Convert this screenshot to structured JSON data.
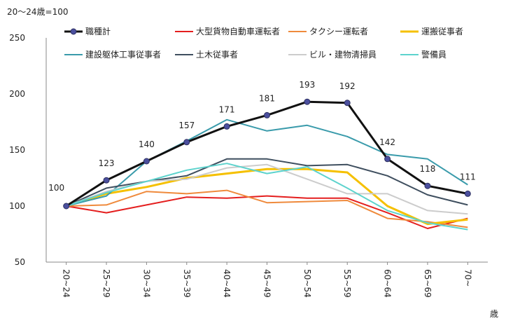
{
  "chart_data": {
    "type": "line",
    "unit_note": "20～24歳=100",
    "xlabel": "歳",
    "ylim": [
      50,
      250
    ],
    "yticks": [
      50,
      100,
      150,
      200,
      250
    ],
    "grid": false,
    "legend_position": "top",
    "categories": [
      "20~24",
      "25~29",
      "30~34",
      "35~39",
      "40~44",
      "45~49",
      "50~54",
      "55~59",
      "60~64",
      "65~69",
      "70~"
    ],
    "series": [
      {
        "name": "職種計",
        "color": "#111111",
        "marker": true,
        "labels": true,
        "values": [
          100,
          123,
          140,
          157,
          171,
          181,
          193,
          192,
          142,
          118,
          111
        ]
      },
      {
        "name": "大型貨物自動車運転者",
        "color": "#e41e1e",
        "values": [
          100,
          94,
          101,
          108,
          107,
          109,
          107,
          107,
          94,
          80,
          89
        ]
      },
      {
        "name": "タクシー運転者",
        "color": "#ef8a3c",
        "values": [
          100,
          101,
          113,
          111,
          114,
          103,
          104,
          105,
          89,
          86,
          81
        ]
      },
      {
        "name": "運搬従事者",
        "color": "#f5c000",
        "values": [
          100,
          111,
          117,
          125,
          129,
          133,
          133,
          130,
          100,
          84,
          88
        ]
      },
      {
        "name": "建設躯体工事従事者",
        "color": "#3a9bab",
        "values": [
          100,
          109,
          140,
          158,
          177,
          167,
          172,
          162,
          146,
          142,
          119
        ]
      },
      {
        "name": "土木従事者",
        "color": "#3f4f5f",
        "values": [
          100,
          116,
          122,
          127,
          142,
          142,
          136,
          137,
          127,
          110,
          101
        ]
      },
      {
        "name": "ビル・建物清掃員",
        "color": "#cccccc",
        "values": [
          100,
          113,
          122,
          124,
          134,
          137,
          124,
          111,
          111,
          96,
          93
        ]
      },
      {
        "name": "警備員",
        "color": "#5dd3cd",
        "values": [
          100,
          112,
          122,
          132,
          138,
          129,
          135,
          116,
          96,
          85,
          79
        ]
      }
    ]
  }
}
